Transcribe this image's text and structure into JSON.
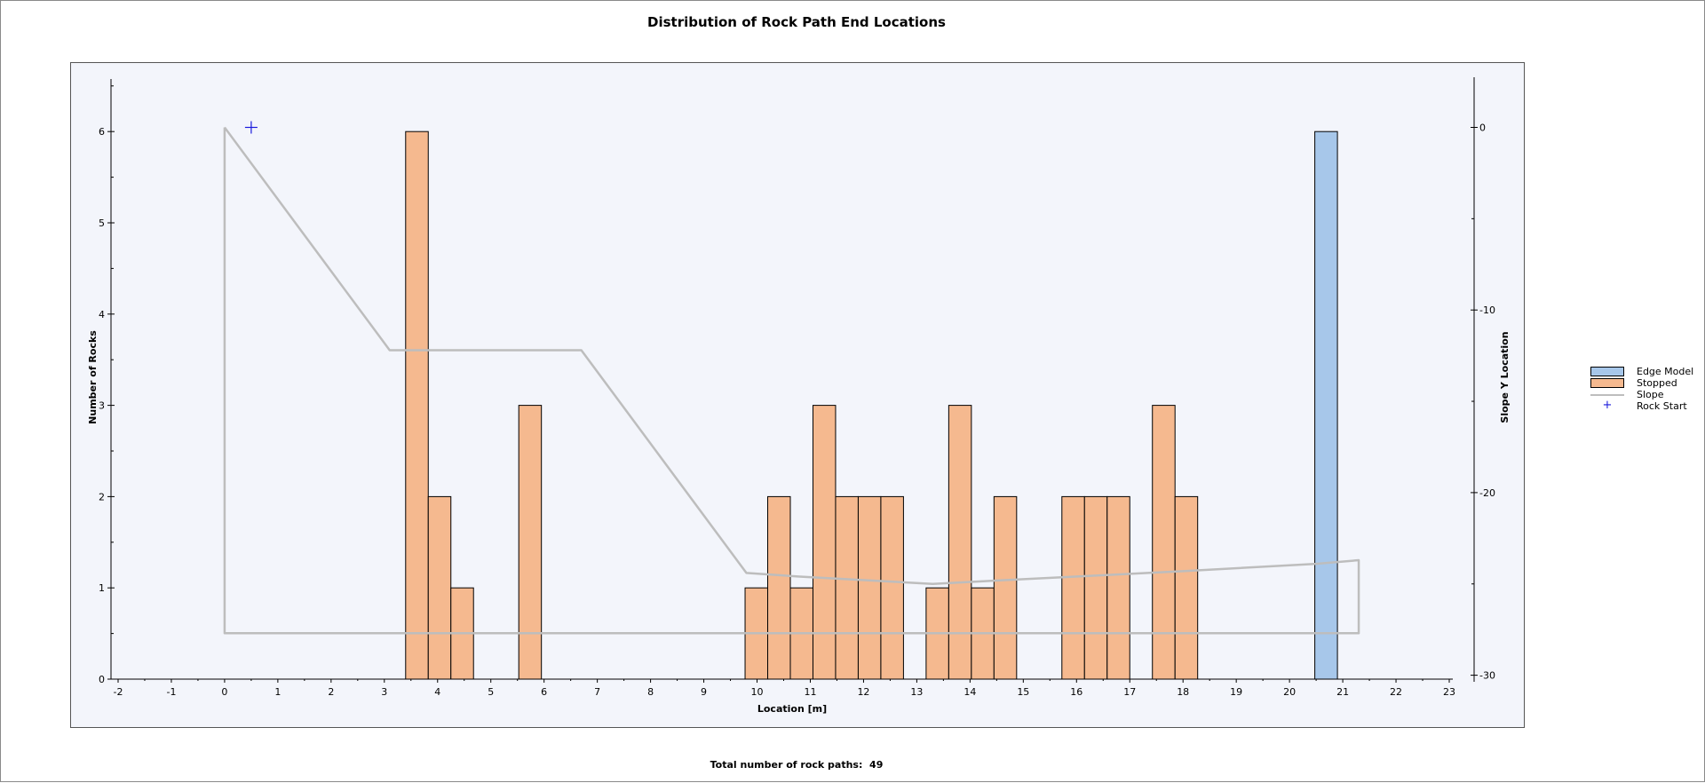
{
  "chart_data": {
    "type": "bar",
    "title": "Distribution of Rock Path End Locations",
    "xlabel": "Location [m]",
    "ylabel": "Number of Rocks",
    "y2label": "Slope Y Location",
    "xlim": [
      -2,
      23
    ],
    "ylim": [
      0,
      6.5
    ],
    "y2lim": [
      -30,
      2.5
    ],
    "x_ticks": [
      -2,
      -1,
      0,
      1,
      2,
      3,
      4,
      5,
      6,
      7,
      8,
      9,
      10,
      11,
      12,
      13,
      14,
      15,
      16,
      17,
      18,
      19,
      20,
      21,
      22,
      23
    ],
    "y_ticks": [
      0,
      1,
      2,
      3,
      4,
      5,
      6
    ],
    "y2_ticks": [
      0,
      -10,
      -20,
      -30
    ],
    "bin_width": 0.425,
    "grid": false,
    "legend_position": "right",
    "series": [
      {
        "name": "Edge Model",
        "type": "bar",
        "color": "#a7c7ea",
        "bins": [
          {
            "x": 20.475,
            "value": 6
          }
        ]
      },
      {
        "name": "Stopped",
        "type": "bar",
        "color": "#f5b98f",
        "bins": [
          {
            "x": 3.4,
            "value": 6
          },
          {
            "x": 3.825,
            "value": 2
          },
          {
            "x": 4.25,
            "value": 1
          },
          {
            "x": 5.525,
            "value": 3
          },
          {
            "x": 9.775,
            "value": 1
          },
          {
            "x": 10.2,
            "value": 2
          },
          {
            "x": 10.625,
            "value": 1
          },
          {
            "x": 11.05,
            "value": 3
          },
          {
            "x": 11.475,
            "value": 2
          },
          {
            "x": 11.9,
            "value": 2
          },
          {
            "x": 12.325,
            "value": 2
          },
          {
            "x": 13.175,
            "value": 1
          },
          {
            "x": 13.6,
            "value": 3
          },
          {
            "x": 14.025,
            "value": 1
          },
          {
            "x": 14.45,
            "value": 2
          },
          {
            "x": 15.725,
            "value": 2
          },
          {
            "x": 16.15,
            "value": 2
          },
          {
            "x": 16.575,
            "value": 2
          },
          {
            "x": 17.425,
            "value": 3
          },
          {
            "x": 17.85,
            "value": 2
          }
        ]
      },
      {
        "name": "Slope",
        "type": "line",
        "axis": "y2",
        "color": "#bdbdbd",
        "points": [
          [
            0,
            0
          ],
          [
            3.1,
            -12.2
          ],
          [
            6.7,
            -12.2
          ],
          [
            9.8,
            -24.4
          ],
          [
            10.8,
            -24.6
          ],
          [
            13.3,
            -25
          ],
          [
            14.6,
            -24.8
          ],
          [
            18.0,
            -24.3
          ],
          [
            20.5,
            -23.9
          ],
          [
            21.3,
            -23.7
          ],
          [
            21.3,
            -27.7
          ],
          [
            0,
            -27.7
          ],
          [
            0,
            0
          ]
        ]
      },
      {
        "name": "Rock Start",
        "type": "scatter",
        "axis": "y2",
        "color": "#1a1adc",
        "points": [
          [
            0.5,
            0
          ]
        ]
      }
    ],
    "annotation": {
      "label": "Total number of rock paths:",
      "value": "49"
    }
  }
}
